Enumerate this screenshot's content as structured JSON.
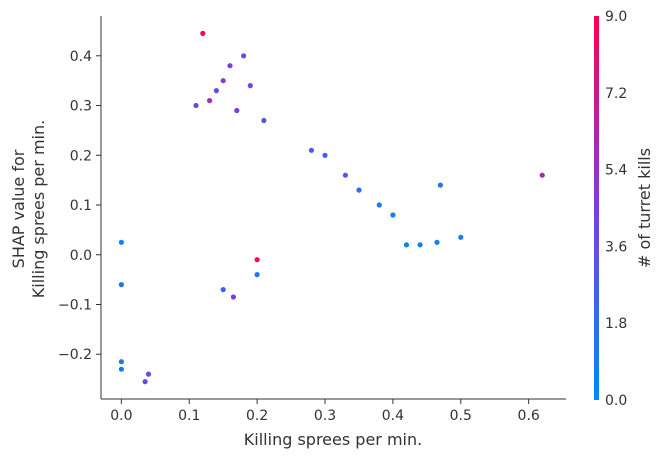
{
  "chart_data": {
    "type": "scatter",
    "xlabel": "Killing sprees per min.",
    "ylabel_lines": [
      "SHAP value for",
      "Killing sprees per min."
    ],
    "xlim": [
      -0.03,
      0.655
    ],
    "ylim": [
      -0.29,
      0.48
    ],
    "x_ticks": [
      0.0,
      0.1,
      0.2,
      0.3,
      0.4,
      0.5,
      0.6
    ],
    "x_tick_labels": [
      "0.0",
      "0.1",
      "0.2",
      "0.3",
      "0.4",
      "0.5",
      "0.6"
    ],
    "y_ticks": [
      -0.2,
      -0.1,
      0.0,
      0.1,
      0.2,
      0.3,
      0.4
    ],
    "y_tick_labels": [
      "−0.2",
      "−0.1",
      "0.0",
      "0.1",
      "0.2",
      "0.3",
      "0.4"
    ],
    "color_feature": "# of turret kills",
    "color_range": [
      0.0,
      9.0
    ],
    "colorbar_ticks": [
      0.0,
      1.8,
      3.6,
      5.4,
      7.2,
      9.0
    ],
    "colorbar_tick_labels": [
      "0.0",
      "1.8",
      "3.6",
      "5.4",
      "7.2",
      "9.0"
    ],
    "colormap": [
      "#008afb",
      "#7b3fde",
      "#ff0052"
    ],
    "grid": false,
    "points": [
      {
        "x": 0.12,
        "y": 0.445,
        "c": 9.0
      },
      {
        "x": 0.18,
        "y": 0.4,
        "c": 4.0
      },
      {
        "x": 0.16,
        "y": 0.38,
        "c": 4.5
      },
      {
        "x": 0.15,
        "y": 0.35,
        "c": 5.0
      },
      {
        "x": 0.14,
        "y": 0.33,
        "c": 3.5
      },
      {
        "x": 0.19,
        "y": 0.34,
        "c": 4.2
      },
      {
        "x": 0.13,
        "y": 0.31,
        "c": 5.5
      },
      {
        "x": 0.11,
        "y": 0.3,
        "c": 3.8
      },
      {
        "x": 0.17,
        "y": 0.29,
        "c": 4.4
      },
      {
        "x": 0.21,
        "y": 0.27,
        "c": 3.2
      },
      {
        "x": 0.62,
        "y": 0.16,
        "c": 6.0
      },
      {
        "x": 0.47,
        "y": 0.14,
        "c": 1.5
      },
      {
        "x": 0.4,
        "y": 0.08,
        "c": 0.6
      },
      {
        "x": 0.44,
        "y": 0.02,
        "c": 0.4
      },
      {
        "x": 0.42,
        "y": 0.02,
        "c": 0.3
      },
      {
        "x": 0.5,
        "y": 0.035,
        "c": 0.8
      },
      {
        "x": 0.465,
        "y": 0.025,
        "c": 0.5
      },
      {
        "x": 0.38,
        "y": 0.1,
        "c": 1.2
      },
      {
        "x": 0.35,
        "y": 0.13,
        "c": 2.0
      },
      {
        "x": 0.33,
        "y": 0.16,
        "c": 3.0
      },
      {
        "x": 0.3,
        "y": 0.2,
        "c": 2.5
      },
      {
        "x": 0.28,
        "y": 0.21,
        "c": 2.8
      },
      {
        "x": 0.2,
        "y": -0.01,
        "c": 8.5
      },
      {
        "x": 0.2,
        "y": -0.04,
        "c": 1.0
      },
      {
        "x": 0.15,
        "y": -0.07,
        "c": 2.5
      },
      {
        "x": 0.165,
        "y": -0.085,
        "c": 4.5
      },
      {
        "x": 0.035,
        "y": -0.255,
        "c": 4.0
      },
      {
        "x": 0.04,
        "y": -0.24,
        "c": 3.5
      },
      {
        "x": 0.0,
        "y": -0.23,
        "c": 1.0
      },
      {
        "x": 0.0,
        "y": -0.215,
        "c": 1.5
      },
      {
        "x": 0.0,
        "y": 0.025,
        "c": 0.5
      },
      {
        "x": 0.0,
        "y": -0.06,
        "c": 1.8
      }
    ]
  }
}
